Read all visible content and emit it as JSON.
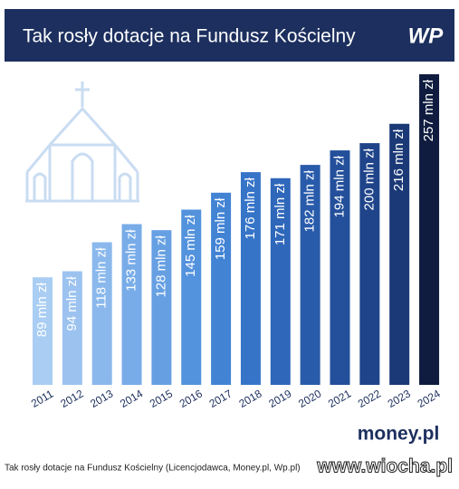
{
  "chart_data": {
    "type": "bar",
    "title": "Tak rosły dotacje na Fundusz Kościelny",
    "logo": "WP",
    "categories": [
      "2011",
      "2012",
      "2013",
      "2014",
      "2015",
      "2016",
      "2017",
      "2018",
      "2019",
      "2020",
      "2021",
      "2022",
      "2023",
      "2024"
    ],
    "values": [
      89,
      94,
      118,
      133,
      128,
      145,
      159,
      176,
      171,
      182,
      194,
      200,
      216,
      257
    ],
    "value_labels": [
      "89 mln zł",
      "94 mln zł",
      "118 mln zł",
      "133 mln zł",
      "128 mln zł",
      "145 mln zł",
      "159 mln zł",
      "176 mln zł",
      "171 mln zł",
      "182 mln zł",
      "194 mln zł",
      "200 mln zł",
      "216 mln zł",
      "257 mln zł"
    ],
    "colors": [
      "#a9cdf3",
      "#9cc3f0",
      "#8ab8ec",
      "#78ace8",
      "#66a0e3",
      "#5392dc",
      "#4283d4",
      "#3674c8",
      "#2f67ba",
      "#295bab",
      "#234f9b",
      "#1f448a",
      "#1b3976",
      "#0f1c3f"
    ],
    "source_brand": "money.pl",
    "caption": "Tak rosły dotacje na Fundusz Kościelny (Licencjodawca, Money.pl, Wp.pl)",
    "watermark": "www.wiocha.pl"
  }
}
